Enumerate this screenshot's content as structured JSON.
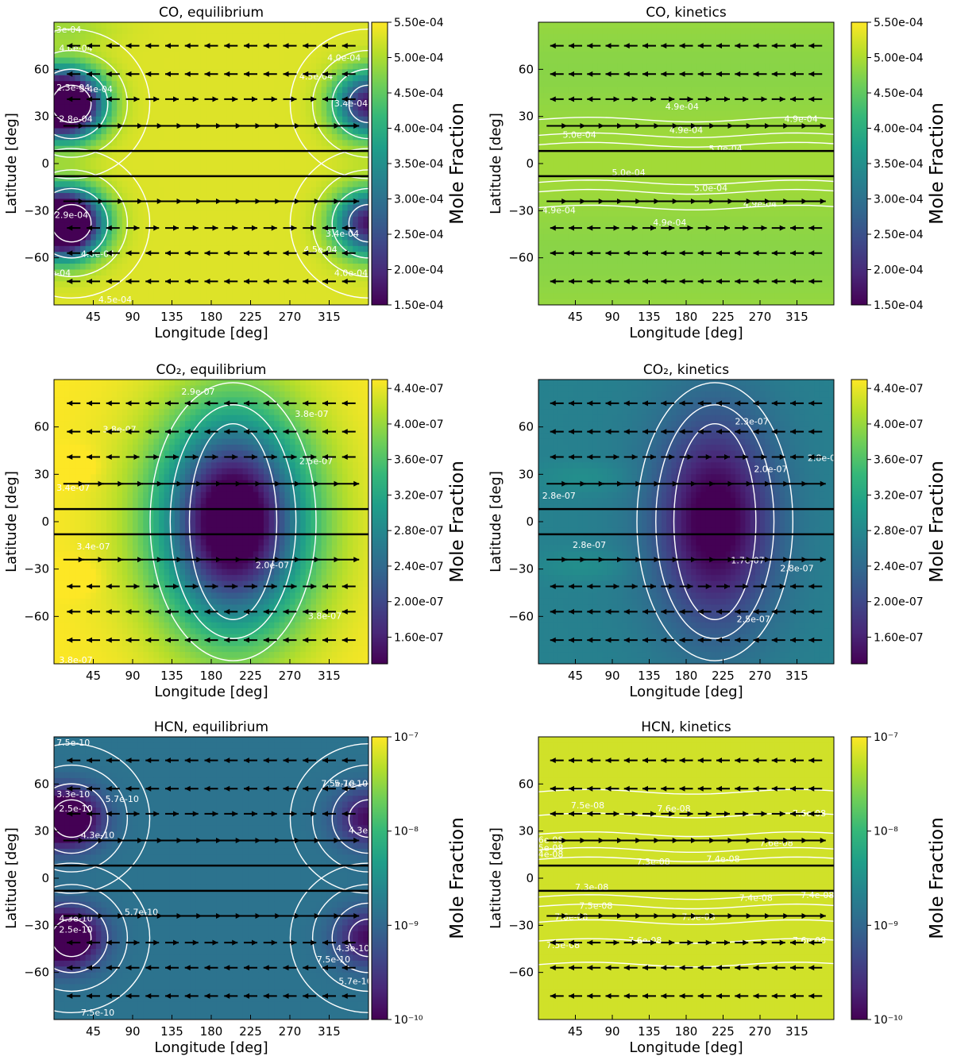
{
  "figure": {
    "colors": {
      "viridis": [
        "#440154",
        "#482878",
        "#3e4989",
        "#31688e",
        "#26828e",
        "#1f9e89",
        "#35b779",
        "#6ece58",
        "#b5de2b",
        "#fde725"
      ],
      "contour": "#ffffff",
      "arrow": "#000000"
    }
  },
  "chart_data": [
    {
      "type": "heatmap",
      "title": "CO, equilibrium",
      "xlabel": "Longitude [deg]",
      "ylabel": "Latitude [deg]",
      "colorbar_label": "Mole Fraction",
      "xlim": [
        0,
        360
      ],
      "ylim": [
        -90,
        90
      ],
      "xticks": [
        "45",
        "90",
        "135",
        "180",
        "225",
        "270",
        "315"
      ],
      "yticks": [
        "60",
        "30",
        "0",
        "−30",
        "−60"
      ],
      "colorbar_ticks": [
        "5.50e-04",
        "5.00e-04",
        "4.50e-04",
        "4.00e-04",
        "3.50e-04",
        "3.00e-04",
        "2.50e-04",
        "2.00e-04",
        "1.50e-04"
      ],
      "colorbar_range": [
        0.00015,
        0.00055
      ],
      "pattern": "co_eq",
      "contour_labels": [
        {
          "text": "4.3e-04",
          "lon": 12,
          "lat": 85
        },
        {
          "text": "4.0e-04",
          "lon": 25,
          "lat": 73
        },
        {
          "text": "3.4e-04",
          "lon": 48,
          "lat": 47
        },
        {
          "text": "2.3e-04",
          "lon": 22,
          "lat": 48
        },
        {
          "text": "2.8e-04",
          "lon": 25,
          "lat": 28
        },
        {
          "text": "4.5e-04",
          "lon": 300,
          "lat": 55
        },
        {
          "text": "4.0e-04",
          "lon": 332,
          "lat": 67
        },
        {
          "text": "3.4e-04",
          "lon": 340,
          "lat": 38
        },
        {
          "text": "2.9e-04",
          "lon": 20,
          "lat": -33
        },
        {
          "text": "4.0e-04",
          "lon": 50,
          "lat": -58
        },
        {
          "text": "4.5e-04",
          "lon": 305,
          "lat": -55
        },
        {
          "text": "3.4e-04",
          "lon": 330,
          "lat": -45
        },
        {
          "text": "4.0e-04",
          "lon": 340,
          "lat": -70
        },
        {
          "text": "4.5e-04",
          "lon": 70,
          "lat": -87
        },
        {
          "text": "e-04",
          "lon": 8,
          "lat": -70
        }
      ]
    },
    {
      "type": "heatmap",
      "title": "CO, kinetics",
      "xlabel": "Longitude [deg]",
      "ylabel": "Latitude [deg]",
      "colorbar_label": "Mole Fraction",
      "xlim": [
        0,
        360
      ],
      "ylim": [
        -90,
        90
      ],
      "xticks": [
        "45",
        "90",
        "135",
        "180",
        "225",
        "270",
        "315"
      ],
      "yticks": [
        "60",
        "30",
        "0",
        "−30",
        "−60"
      ],
      "colorbar_ticks": [
        "5.50e-04",
        "5.00e-04",
        "4.50e-04",
        "4.00e-04",
        "3.50e-04",
        "3.00e-04",
        "2.50e-04",
        "2.00e-04",
        "1.50e-04"
      ],
      "colorbar_range": [
        0.00015,
        0.00055
      ],
      "pattern": "co_kin",
      "contour_labels": [
        {
          "text": "4.9e-04",
          "lon": 175,
          "lat": 36
        },
        {
          "text": "4.9e-04",
          "lon": 320,
          "lat": 28
        },
        {
          "text": "4.9e-04",
          "lon": 180,
          "lat": 21
        },
        {
          "text": "5.0e-04",
          "lon": 50,
          "lat": 18
        },
        {
          "text": "5.0e-04",
          "lon": 228,
          "lat": 9
        },
        {
          "text": "5.0e-04",
          "lon": 110,
          "lat": -6
        },
        {
          "text": "5.0e-04",
          "lon": 210,
          "lat": -16
        },
        {
          "text": "4.9e-04",
          "lon": 270,
          "lat": -26
        },
        {
          "text": "4.9e-04",
          "lon": 25,
          "lat": -30
        },
        {
          "text": "4.9e-04",
          "lon": 160,
          "lat": -38
        }
      ]
    },
    {
      "type": "heatmap",
      "title": "CO₂, equilibrium",
      "xlabel": "Longitude [deg]",
      "ylabel": "Latitude [deg]",
      "colorbar_label": "Mole Fraction",
      "xlim": [
        0,
        360
      ],
      "ylim": [
        -90,
        90
      ],
      "xticks": [
        "45",
        "90",
        "135",
        "180",
        "225",
        "270",
        "315"
      ],
      "yticks": [
        "60",
        "30",
        "0",
        "−30",
        "−60"
      ],
      "colorbar_ticks": [
        "4.40e-07",
        "4.00e-07",
        "3.60e-07",
        "3.20e-07",
        "2.80e-07",
        "2.40e-07",
        "2.00e-07",
        "1.60e-07"
      ],
      "colorbar_range": [
        1.3e-07,
        4.5e-07
      ],
      "pattern": "co2_eq",
      "contour_labels": [
        {
          "text": "2.9e-07",
          "lon": 165,
          "lat": 82
        },
        {
          "text": "3.8e-07",
          "lon": 75,
          "lat": 58
        },
        {
          "text": "3.8e-07",
          "lon": 295,
          "lat": 68
        },
        {
          "text": "2.5e-07",
          "lon": 300,
          "lat": 38
        },
        {
          "text": "3.4e-07",
          "lon": 22,
          "lat": 21
        },
        {
          "text": "3.4e-07",
          "lon": 45,
          "lat": -16
        },
        {
          "text": "2.0e-07",
          "lon": 250,
          "lat": -28
        },
        {
          "text": "3.8e-07",
          "lon": 310,
          "lat": -60
        },
        {
          "text": "3.8e-07",
          "lon": 25,
          "lat": -88
        }
      ]
    },
    {
      "type": "heatmap",
      "title": "CO₂, kinetics",
      "xlabel": "Longitude [deg]",
      "ylabel": "Latitude [deg]",
      "colorbar_label": "Mole Fraction",
      "xlim": [
        0,
        360
      ],
      "ylim": [
        -90,
        90
      ],
      "xticks": [
        "45",
        "90",
        "135",
        "180",
        "225",
        "270",
        "315"
      ],
      "yticks": [
        "60",
        "30",
        "0",
        "−30",
        "−60"
      ],
      "colorbar_ticks": [
        "4.40e-07",
        "4.00e-07",
        "3.60e-07",
        "3.20e-07",
        "2.80e-07",
        "2.40e-07",
        "2.00e-07",
        "1.60e-07"
      ],
      "colorbar_range": [
        1.3e-07,
        4.5e-07
      ],
      "pattern": "co2_kin",
      "contour_labels": [
        {
          "text": "2.3e-07",
          "lon": 260,
          "lat": 63
        },
        {
          "text": "2.8e-0",
          "lon": 345,
          "lat": 40
        },
        {
          "text": "2.0e-07",
          "lon": 283,
          "lat": 33
        },
        {
          "text": "2.8e-07",
          "lon": 25,
          "lat": 16
        },
        {
          "text": "2.8e-07",
          "lon": 62,
          "lat": -15
        },
        {
          "text": "1.7e-07",
          "lon": 255,
          "lat": -25
        },
        {
          "text": "2.8e-07",
          "lon": 315,
          "lat": -30
        },
        {
          "text": "2.5e-07",
          "lon": 262,
          "lat": -62
        }
      ]
    },
    {
      "type": "heatmap",
      "title": "HCN, equilibrium",
      "xlabel": "Longitude [deg]",
      "ylabel": "Latitude [deg]",
      "colorbar_label": "Mole Fraction",
      "xlim": [
        0,
        360
      ],
      "ylim": [
        -90,
        90
      ],
      "xticks": [
        "45",
        "90",
        "135",
        "180",
        "225",
        "270",
        "315"
      ],
      "yticks": [
        "60",
        "30",
        "0",
        "−30",
        "−60"
      ],
      "colorbar_ticks": [
        "10⁻⁷",
        "10⁻⁸",
        "10⁻⁹",
        "10⁻¹⁰"
      ],
      "colorbar_range": [
        -10,
        -7
      ],
      "colorbar_log": true,
      "pattern": "hcn_eq",
      "contour_labels": [
        {
          "text": "7.5e-10",
          "lon": 22,
          "lat": 86
        },
        {
          "text": "5.7e-10",
          "lon": 78,
          "lat": 50
        },
        {
          "text": "3.3e-10",
          "lon": 22,
          "lat": 53
        },
        {
          "text": "2.5e-10",
          "lon": 25,
          "lat": 44
        },
        {
          "text": "4.3e-10",
          "lon": 50,
          "lat": 27
        },
        {
          "text": "7.5e-10",
          "lon": 325,
          "lat": 60
        },
        {
          "text": "5.7e-10",
          "lon": 340,
          "lat": 60
        },
        {
          "text": "4.3e-",
          "lon": 350,
          "lat": 30
        },
        {
          "text": "5.7e-10",
          "lon": 100,
          "lat": -22
        },
        {
          "text": "4.3e-10",
          "lon": 25,
          "lat": -26
        },
        {
          "text": "2.5e-10",
          "lon": 25,
          "lat": -33
        },
        {
          "text": "7.5e-10",
          "lon": 320,
          "lat": -52
        },
        {
          "text": "4.3e-10",
          "lon": 342,
          "lat": -45
        },
        {
          "text": "5.7e-10",
          "lon": 345,
          "lat": -66
        },
        {
          "text": "7.5e-10",
          "lon": 50,
          "lat": -86
        }
      ]
    },
    {
      "type": "heatmap",
      "title": "HCN, kinetics",
      "xlabel": "Longitude [deg]",
      "ylabel": "Latitude [deg]",
      "colorbar_label": "Mole Fraction",
      "xlim": [
        0,
        360
      ],
      "ylim": [
        -90,
        90
      ],
      "xticks": [
        "45",
        "90",
        "135",
        "180",
        "225",
        "270",
        "315"
      ],
      "yticks": [
        "60",
        "30",
        "0",
        "−30",
        "−60"
      ],
      "colorbar_ticks": [
        "10⁻⁷",
        "10⁻⁸",
        "10⁻⁹",
        "10⁻¹⁰"
      ],
      "colorbar_range": [
        -10,
        -7
      ],
      "colorbar_log": true,
      "pattern": "hcn_kin",
      "contour_labels": [
        {
          "text": "7.5e-08",
          "lon": 60,
          "lat": 46
        },
        {
          "text": "7.6e-08",
          "lon": 165,
          "lat": 44
        },
        {
          "text": "7.6e-08",
          "lon": 330,
          "lat": 41
        },
        {
          "text": "7.6e-08",
          "lon": 10,
          "lat": 24
        },
        {
          "text": "7.5e-08",
          "lon": 10,
          "lat": 19
        },
        {
          "text": "7.4e-08",
          "lon": 10,
          "lat": 15
        },
        {
          "text": "7.6e-08",
          "lon": 290,
          "lat": 22
        },
        {
          "text": "7.3e-08",
          "lon": 140,
          "lat": 10
        },
        {
          "text": "7.4e-08",
          "lon": 225,
          "lat": 12
        },
        {
          "text": "7.3e-08",
          "lon": 65,
          "lat": -6
        },
        {
          "text": "7.4e-08",
          "lon": 265,
          "lat": -13
        },
        {
          "text": "7.4e-08",
          "lon": 340,
          "lat": -11
        },
        {
          "text": "7.5e-08",
          "lon": 70,
          "lat": -18
        },
        {
          "text": "7.6e-08",
          "lon": 40,
          "lat": -25
        },
        {
          "text": "7.6e-08",
          "lon": 195,
          "lat": -25
        },
        {
          "text": "7.6e-08",
          "lon": 130,
          "lat": -40
        },
        {
          "text": "7.5e-08",
          "lon": 30,
          "lat": -43
        },
        {
          "text": "7.6e-08",
          "lon": 330,
          "lat": -40
        }
      ]
    }
  ]
}
